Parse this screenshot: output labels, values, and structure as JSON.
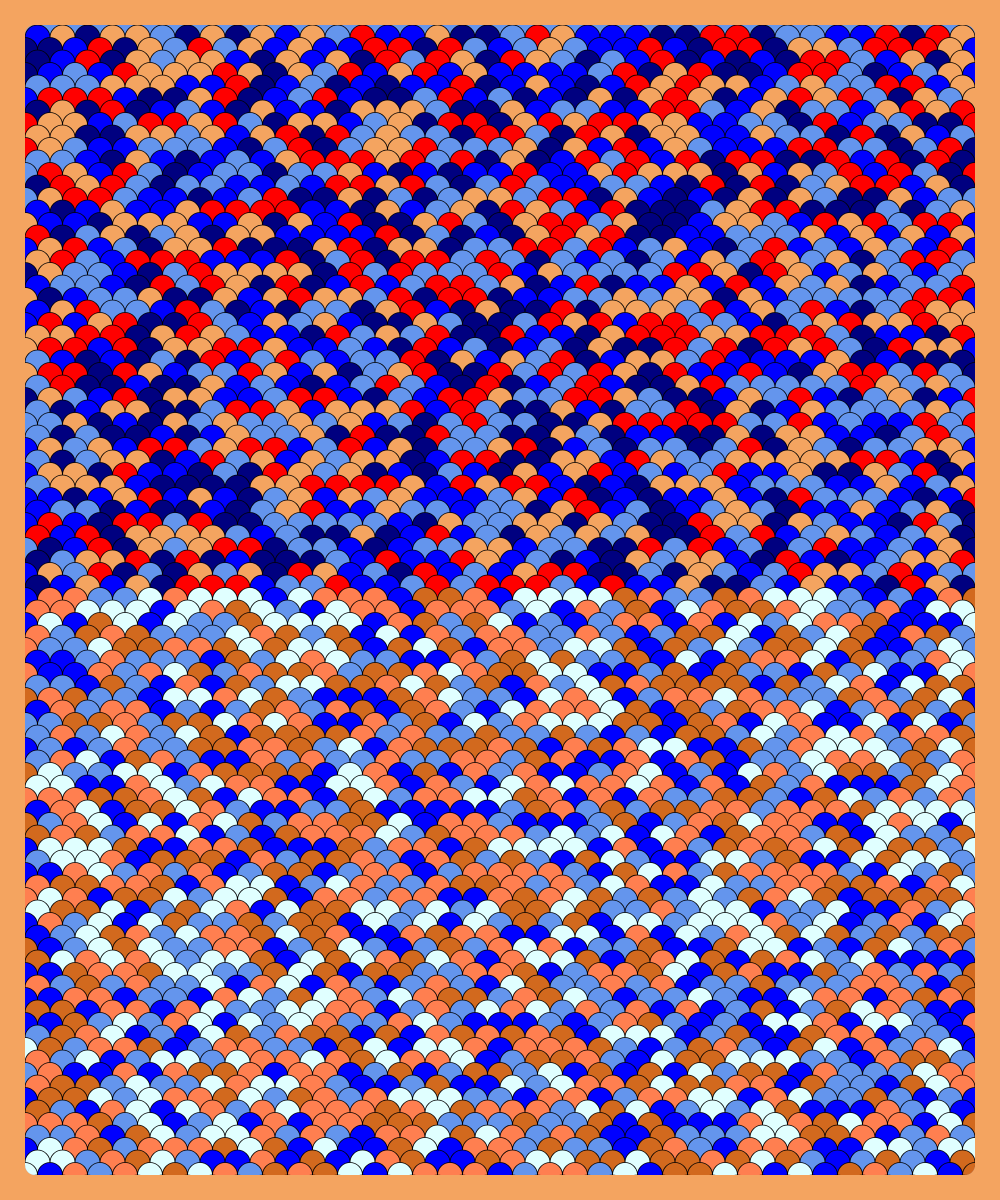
{
  "frame_color": "#F4A460",
  "pattern": "fish-scale",
  "palettes": {
    "upper": [
      "#6495ED",
      "#0000FF",
      "#FF0000",
      "#F4A460",
      "#000080"
    ],
    "lower": [
      "#6495ED",
      "#0000FF",
      "#E0FFFF",
      "#D2691E",
      "#FF7F50"
    ]
  },
  "outline_color": "#000000"
}
